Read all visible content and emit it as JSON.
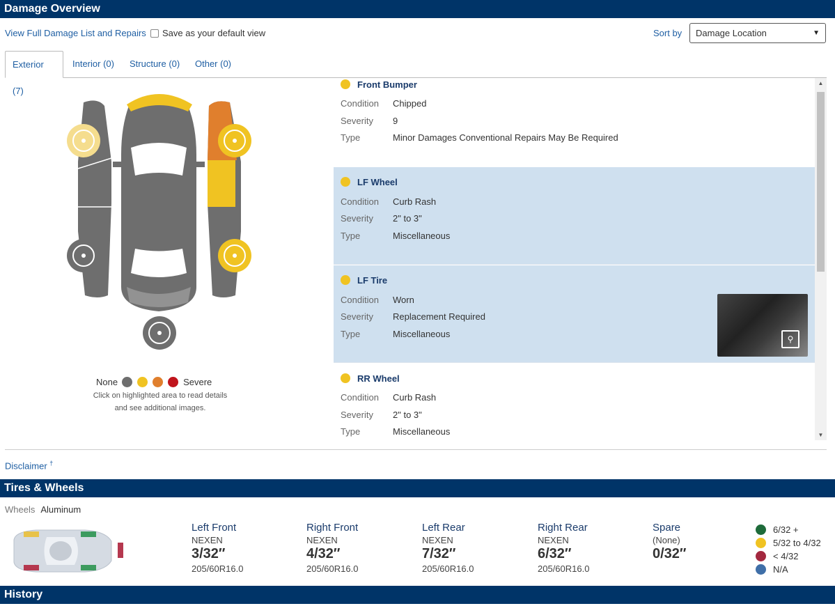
{
  "header": {
    "title": "Damage Overview"
  },
  "toolbar": {
    "full_list_link": "View Full Damage List and Repairs",
    "default_view_label": "Save as your default view",
    "sort_label": "Sort by",
    "sort_value": "Damage Location"
  },
  "tabs": [
    {
      "label": "Exterior (7)",
      "active": true
    },
    {
      "label": "Interior (0)"
    },
    {
      "label": "Structure (0)"
    },
    {
      "label": "Other (0)"
    }
  ],
  "legend": {
    "none": "None",
    "severe": "Severe",
    "colors": [
      "#6e6e6e",
      "#f0c322",
      "#e07f2d",
      "#c0141c"
    ],
    "note_line1": "Click on highlighted area to read details",
    "note_line2": "and see additional images."
  },
  "field_labels": {
    "condition": "Condition",
    "severity": "Severity",
    "type": "Type"
  },
  "damages": [
    {
      "title": "Front Bumper",
      "condition": "Chipped",
      "severity": "9",
      "type": "Minor Damages Conventional Repairs May Be Required",
      "color": "#f0c322"
    },
    {
      "title": "LF Wheel",
      "condition": "Curb Rash",
      "severity": "2\" to 3\"",
      "type": "Miscellaneous",
      "color": "#f0c322"
    },
    {
      "title": "LF Tire",
      "condition": "Worn",
      "severity": "Replacement Required",
      "type": "Miscellaneous",
      "color": "#f0c322"
    },
    {
      "title": "RR Wheel",
      "condition": "Curb Rash",
      "severity": "2\" to 3\"",
      "type": "Miscellaneous",
      "color": "#f0c322"
    }
  ],
  "disclaimer": {
    "label": "Disclaimer",
    "mark": "†"
  },
  "tires_section": {
    "title": "Tires & Wheels",
    "wheels_label": "Wheels",
    "wheels_value": "Aluminum",
    "tires": [
      {
        "position": "Left Front",
        "brand": "NEXEN",
        "depth": "3/32″",
        "size": "205/60R16.0"
      },
      {
        "position": "Right Front",
        "brand": "NEXEN",
        "depth": "4/32″",
        "size": "205/60R16.0"
      },
      {
        "position": "Left Rear",
        "brand": "NEXEN",
        "depth": "7/32″",
        "size": "205/60R16.0"
      },
      {
        "position": "Right Rear",
        "brand": "NEXEN",
        "depth": "6/32″",
        "size": "205/60R16.0"
      },
      {
        "position": "Spare",
        "brand": "(None)",
        "depth": "0/32″",
        "size": ""
      }
    ],
    "tread_legend": [
      {
        "label": "6/32 +",
        "color": "#1e6b3a"
      },
      {
        "label": "5/32 to 4/32",
        "color": "#f0c322"
      },
      {
        "label": "< 4/32",
        "color": "#a3283f"
      },
      {
        "label": "N/A",
        "color": "#3f6fa8"
      }
    ]
  },
  "history": {
    "title": "History"
  }
}
